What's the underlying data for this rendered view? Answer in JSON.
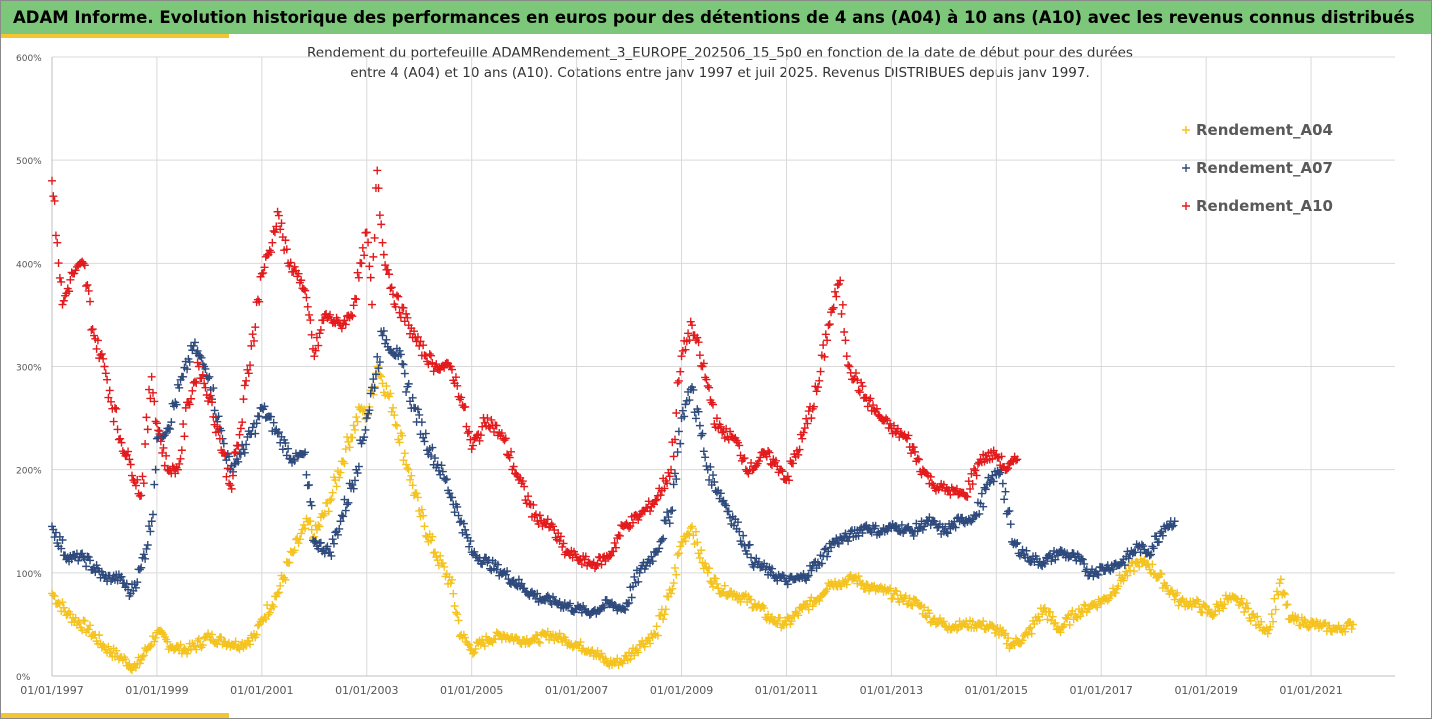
{
  "banner": {
    "title": "ADAM Informe. Evolution historique des performances en euros pour des détentions de 4 ans (A04) à 10 ans (A10) avec les revenus connus distribués"
  },
  "chart_data": {
    "type": "scatter",
    "title_line1": "Rendement du portefeuille ADAMRendement_3_EUROPE_202506_15_5p0  en fonction de la date de début pour des durées",
    "title_line2": "entre 4 (A04) et 10 ans (A10). Cotations entre janv 1997 et juil 2025. Revenus DISTRIBUES depuis janv 1997.",
    "xlabel": "",
    "ylabel": "",
    "ylim": [
      0,
      600
    ],
    "y_ticks": [
      "0%",
      "100%",
      "200%",
      "300%",
      "400%",
      "500%",
      "600%"
    ],
    "x_ticks": [
      "01/01/1997",
      "01/01/1999",
      "01/01/2001",
      "01/01/2003",
      "01/01/2005",
      "01/01/2007",
      "01/01/2009",
      "01/01/2011",
      "01/01/2013",
      "01/01/2015",
      "01/01/2017",
      "01/01/2019",
      "01/01/2021"
    ],
    "xlim": [
      1997.0,
      2022.6
    ],
    "grid": "vertical",
    "legend_position": "top-right",
    "marker": "+",
    "series": [
      {
        "name": "Rendement_A04",
        "color": "#f5c31f",
        "points": [
          [
            1997.0,
            80
          ],
          [
            1997.3,
            60
          ],
          [
            1997.7,
            45
          ],
          [
            1998.0,
            28
          ],
          [
            1998.3,
            18
          ],
          [
            1998.6,
            8
          ],
          [
            1998.8,
            25
          ],
          [
            1999.0,
            42
          ],
          [
            1999.3,
            28
          ],
          [
            1999.6,
            25
          ],
          [
            2000.0,
            38
          ],
          [
            2000.3,
            33
          ],
          [
            2000.6,
            30
          ],
          [
            2000.9,
            40
          ],
          [
            2001.0,
            55
          ],
          [
            2001.3,
            80
          ],
          [
            2001.6,
            120
          ],
          [
            2001.9,
            150
          ],
          [
            2002.0,
            135
          ],
          [
            2002.3,
            170
          ],
          [
            2002.6,
            220
          ],
          [
            2002.9,
            260
          ],
          [
            2003.0,
            250
          ],
          [
            2003.2,
            300
          ],
          [
            2003.5,
            260
          ],
          [
            2003.8,
            200
          ],
          [
            2004.0,
            160
          ],
          [
            2004.3,
            120
          ],
          [
            2004.6,
            90
          ],
          [
            2004.8,
            40
          ],
          [
            2005.0,
            25
          ],
          [
            2005.3,
            35
          ],
          [
            2005.6,
            40
          ],
          [
            2005.9,
            35
          ],
          [
            2006.2,
            35
          ],
          [
            2006.5,
            40
          ],
          [
            2006.8,
            35
          ],
          [
            2007.0,
            30
          ],
          [
            2007.3,
            25
          ],
          [
            2007.6,
            12
          ],
          [
            2007.9,
            15
          ],
          [
            2008.2,
            30
          ],
          [
            2008.5,
            40
          ],
          [
            2008.8,
            80
          ],
          [
            2009.0,
            130
          ],
          [
            2009.2,
            145
          ],
          [
            2009.4,
            110
          ],
          [
            2009.7,
            85
          ],
          [
            2010.0,
            80
          ],
          [
            2010.4,
            70
          ],
          [
            2010.7,
            55
          ],
          [
            2011.0,
            50
          ],
          [
            2011.3,
            65
          ],
          [
            2011.6,
            75
          ],
          [
            2011.8,
            90
          ],
          [
            2012.0,
            90
          ],
          [
            2012.3,
            95
          ],
          [
            2012.6,
            85
          ],
          [
            2012.9,
            82
          ],
          [
            2013.2,
            75
          ],
          [
            2013.5,
            70
          ],
          [
            2013.8,
            55
          ],
          [
            2014.1,
            48
          ],
          [
            2014.4,
            50
          ],
          [
            2014.7,
            50
          ],
          [
            2015.0,
            45
          ],
          [
            2015.3,
            30
          ],
          [
            2015.6,
            40
          ],
          [
            2015.9,
            65
          ],
          [
            2016.2,
            45
          ],
          [
            2016.5,
            60
          ],
          [
            2016.8,
            68
          ],
          [
            2017.1,
            75
          ],
          [
            2017.4,
            95
          ],
          [
            2017.7,
            110
          ],
          [
            2017.9,
            108
          ],
          [
            2018.2,
            90
          ],
          [
            2018.5,
            72
          ],
          [
            2018.8,
            70
          ],
          [
            2019.1,
            60
          ],
          [
            2019.4,
            75
          ],
          [
            2019.7,
            70
          ],
          [
            2020.0,
            50
          ],
          [
            2020.2,
            45
          ],
          [
            2020.4,
            90
          ],
          [
            2020.6,
            55
          ],
          [
            2020.9,
            52
          ],
          [
            2021.2,
            48
          ],
          [
            2021.5,
            45
          ],
          [
            2021.8,
            50
          ]
        ]
      },
      {
        "name": "Rendement_A07",
        "color": "#2e4a7d",
        "points": [
          [
            1997.0,
            145
          ],
          [
            1997.3,
            115
          ],
          [
            1997.6,
            115
          ],
          [
            1998.0,
            95
          ],
          [
            1998.3,
            95
          ],
          [
            1998.5,
            80
          ],
          [
            1998.7,
            105
          ],
          [
            1998.9,
            150
          ],
          [
            1999.0,
            230
          ],
          [
            1999.2,
            240
          ],
          [
            1999.5,
            290
          ],
          [
            1999.7,
            320
          ],
          [
            1999.9,
            300
          ],
          [
            2000.0,
            290
          ],
          [
            2000.2,
            240
          ],
          [
            2000.4,
            200
          ],
          [
            2000.6,
            215
          ],
          [
            2000.9,
            245
          ],
          [
            2001.0,
            260
          ],
          [
            2001.3,
            235
          ],
          [
            2001.6,
            210
          ],
          [
            2001.8,
            215
          ],
          [
            2002.0,
            130
          ],
          [
            2002.3,
            120
          ],
          [
            2002.5,
            150
          ],
          [
            2002.8,
            200
          ],
          [
            2003.0,
            250
          ],
          [
            2003.3,
            330
          ],
          [
            2003.6,
            310
          ],
          [
            2003.9,
            260
          ],
          [
            2004.2,
            220
          ],
          [
            2004.5,
            190
          ],
          [
            2004.8,
            150
          ],
          [
            2005.0,
            120
          ],
          [
            2005.3,
            110
          ],
          [
            2005.6,
            100
          ],
          [
            2006.0,
            85
          ],
          [
            2006.3,
            75
          ],
          [
            2006.6,
            72
          ],
          [
            2007.0,
            65
          ],
          [
            2007.3,
            62
          ],
          [
            2007.6,
            70
          ],
          [
            2007.9,
            65
          ],
          [
            2008.2,
            100
          ],
          [
            2008.5,
            120
          ],
          [
            2008.8,
            160
          ],
          [
            2009.0,
            250
          ],
          [
            2009.2,
            280
          ],
          [
            2009.5,
            200
          ],
          [
            2009.8,
            170
          ],
          [
            2010.1,
            140
          ],
          [
            2010.4,
            110
          ],
          [
            2010.7,
            100
          ],
          [
            2011.0,
            92
          ],
          [
            2011.3,
            95
          ],
          [
            2011.6,
            110
          ],
          [
            2011.9,
            130
          ],
          [
            2012.2,
            135
          ],
          [
            2012.5,
            145
          ],
          [
            2012.8,
            140
          ],
          [
            2013.1,
            145
          ],
          [
            2013.4,
            140
          ],
          [
            2013.7,
            150
          ],
          [
            2014.0,
            140
          ],
          [
            2014.3,
            150
          ],
          [
            2014.6,
            155
          ],
          [
            2014.9,
            190
          ],
          [
            2015.1,
            200
          ],
          [
            2015.3,
            130
          ],
          [
            2015.6,
            115
          ],
          [
            2015.9,
            110
          ],
          [
            2016.2,
            120
          ],
          [
            2016.5,
            115
          ],
          [
            2016.8,
            100
          ],
          [
            2017.1,
            105
          ],
          [
            2017.4,
            110
          ],
          [
            2017.7,
            125
          ],
          [
            2017.9,
            120
          ],
          [
            2018.2,
            145
          ],
          [
            2018.4,
            150
          ]
        ]
      },
      {
        "name": "Rendement_A10",
        "color": "#e31a1c",
        "points": [
          [
            1997.0,
            480
          ],
          [
            1997.1,
            420
          ],
          [
            1997.2,
            360
          ],
          [
            1997.4,
            390
          ],
          [
            1997.6,
            400
          ],
          [
            1997.8,
            330
          ],
          [
            1998.0,
            300
          ],
          [
            1998.3,
            230
          ],
          [
            1998.5,
            205
          ],
          [
            1998.7,
            175
          ],
          [
            1998.9,
            290
          ],
          [
            1999.0,
            245
          ],
          [
            1999.2,
            200
          ],
          [
            1999.4,
            200
          ],
          [
            1999.6,
            265
          ],
          [
            1999.8,
            300
          ],
          [
            2000.0,
            270
          ],
          [
            2000.2,
            230
          ],
          [
            2000.4,
            185
          ],
          [
            2000.6,
            240
          ],
          [
            2000.8,
            320
          ],
          [
            2001.0,
            390
          ],
          [
            2001.2,
            420
          ],
          [
            2001.3,
            450
          ],
          [
            2001.5,
            400
          ],
          [
            2001.7,
            390
          ],
          [
            2001.9,
            350
          ],
          [
            2002.0,
            310
          ],
          [
            2002.2,
            350
          ],
          [
            2002.5,
            340
          ],
          [
            2002.7,
            350
          ],
          [
            2002.9,
            400
          ],
          [
            2003.0,
            430
          ],
          [
            2003.1,
            360
          ],
          [
            2003.2,
            490
          ],
          [
            2003.3,
            420
          ],
          [
            2003.5,
            370
          ],
          [
            2003.8,
            340
          ],
          [
            2004.0,
            320
          ],
          [
            2004.3,
            300
          ],
          [
            2004.6,
            300
          ],
          [
            2004.8,
            270
          ],
          [
            2005.0,
            220
          ],
          [
            2005.3,
            250
          ],
          [
            2005.6,
            230
          ],
          [
            2005.9,
            190
          ],
          [
            2006.2,
            155
          ],
          [
            2006.5,
            145
          ],
          [
            2006.8,
            120
          ],
          [
            2007.0,
            115
          ],
          [
            2007.3,
            108
          ],
          [
            2007.6,
            115
          ],
          [
            2007.9,
            145
          ],
          [
            2008.2,
            155
          ],
          [
            2008.5,
            170
          ],
          [
            2008.8,
            200
          ],
          [
            2009.0,
            310
          ],
          [
            2009.2,
            340
          ],
          [
            2009.4,
            300
          ],
          [
            2009.7,
            240
          ],
          [
            2010.0,
            230
          ],
          [
            2010.3,
            200
          ],
          [
            2010.6,
            215
          ],
          [
            2010.9,
            200
          ],
          [
            2011.0,
            190
          ],
          [
            2011.3,
            230
          ],
          [
            2011.6,
            280
          ],
          [
            2011.8,
            340
          ],
          [
            2012.0,
            380
          ],
          [
            2012.2,
            300
          ],
          [
            2012.5,
            270
          ],
          [
            2012.8,
            250
          ],
          [
            2013.0,
            240
          ],
          [
            2013.3,
            230
          ],
          [
            2013.6,
            200
          ],
          [
            2013.8,
            185
          ],
          [
            2014.1,
            180
          ],
          [
            2014.4,
            175
          ],
          [
            2014.7,
            210
          ],
          [
            2015.0,
            215
          ],
          [
            2015.2,
            200
          ],
          [
            2015.4,
            210
          ]
        ]
      }
    ]
  }
}
